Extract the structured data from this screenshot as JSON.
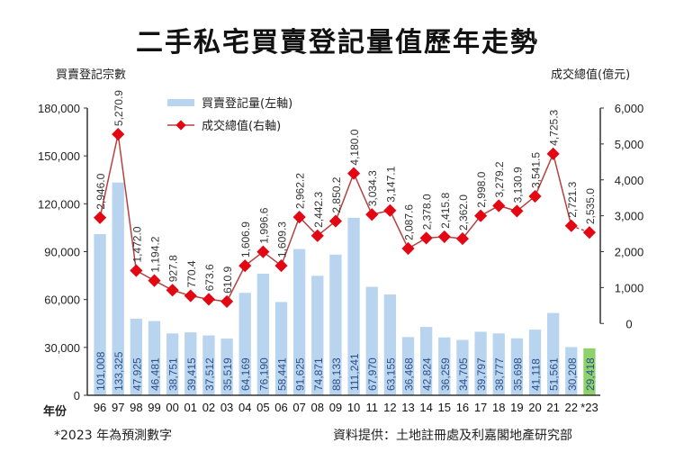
{
  "chart_data": {
    "type": "bar+line",
    "title": "二手私宅買賣登記量值歷年走勢",
    "xlabel": "年份",
    "ylabel_left": "買賣登記宗數",
    "ylabel_right": "成交總值(億元)",
    "categories": [
      "96",
      "97",
      "98",
      "99",
      "00",
      "01",
      "02",
      "03",
      "04",
      "05",
      "06",
      "07",
      "08",
      "09",
      "10",
      "11",
      "12",
      "13",
      "14",
      "15",
      "16",
      "17",
      "18",
      "19",
      "20",
      "21",
      "22",
      "*23"
    ],
    "ylim_left": [
      0,
      180000
    ],
    "yticks_left": [
      "0",
      "30,000",
      "60,000",
      "90,000",
      "120,000",
      "150,000",
      "180,000"
    ],
    "ylim_right": [
      -2000,
      6000
    ],
    "yticks_right": [
      "0",
      "1,000",
      "2,000",
      "3,000",
      "4,000",
      "5,000",
      "6,000"
    ],
    "legend_placement": "top-left",
    "grid": false,
    "series": [
      {
        "name": "買賣登記量(左軸)",
        "type": "bar",
        "axis": "left",
        "color": "#b8d4ee",
        "highlight_last_color": "#8fd16a",
        "values": [
          101008,
          133325,
          47925,
          46481,
          38751,
          39415,
          37512,
          35519,
          64169,
          76190,
          58441,
          91625,
          74871,
          88133,
          111241,
          67970,
          63155,
          36468,
          42824,
          36259,
          34705,
          39797,
          38777,
          35698,
          41118,
          51561,
          30208,
          29418
        ],
        "labels": [
          "101,008",
          "133,325",
          "47,925",
          "46,481",
          "38,751",
          "39,415",
          "37,512",
          "35,519",
          "64,169",
          "76,190",
          "58,441",
          "91,625",
          "74,871",
          "88,133",
          "111,241",
          "67,970",
          "63,155",
          "36,468",
          "42,824",
          "36,259",
          "34,705",
          "39,797",
          "38,777",
          "35,698",
          "41,118",
          "51,561",
          "30,208",
          "29,418"
        ]
      },
      {
        "name": "成交總值(右軸)",
        "type": "line",
        "axis": "right",
        "color": "#e30613",
        "line_color": "#b5403f",
        "values": [
          2946.0,
          5270.9,
          1472.0,
          1194.2,
          927.8,
          770.4,
          673.6,
          610.9,
          1606.9,
          1996.6,
          1609.3,
          2962.2,
          2442.3,
          2850.2,
          4180.0,
          3034.3,
          3147.1,
          2087.6,
          2378.0,
          2415.8,
          2362.0,
          2998.0,
          3279.2,
          3130.9,
          3541.5,
          4725.3,
          2721.3,
          2535.0
        ],
        "labels": [
          "2,946.0",
          "5,270.9",
          "1,472.0",
          "1,194.2",
          "927.8",
          "770.4",
          "673.6",
          "610.9",
          "1,606.9",
          "1,996.6",
          "1,609.3",
          "2,962.2",
          "2,442.3",
          "2,850.2",
          "4,180.0",
          "3,034.3",
          "3,147.1",
          "2,087.6",
          "2,378.0",
          "2,415.8",
          "2,362.0",
          "2,998.0",
          "3,279.2",
          "3,130.9",
          "3,541.5",
          "4,725.3",
          "2,721.3",
          "2,535.0"
        ]
      }
    ]
  },
  "notes": {
    "forecast": "*2023 年為預測數字",
    "source": "資料提供：土地註冊處及利嘉閣地產研究部"
  }
}
